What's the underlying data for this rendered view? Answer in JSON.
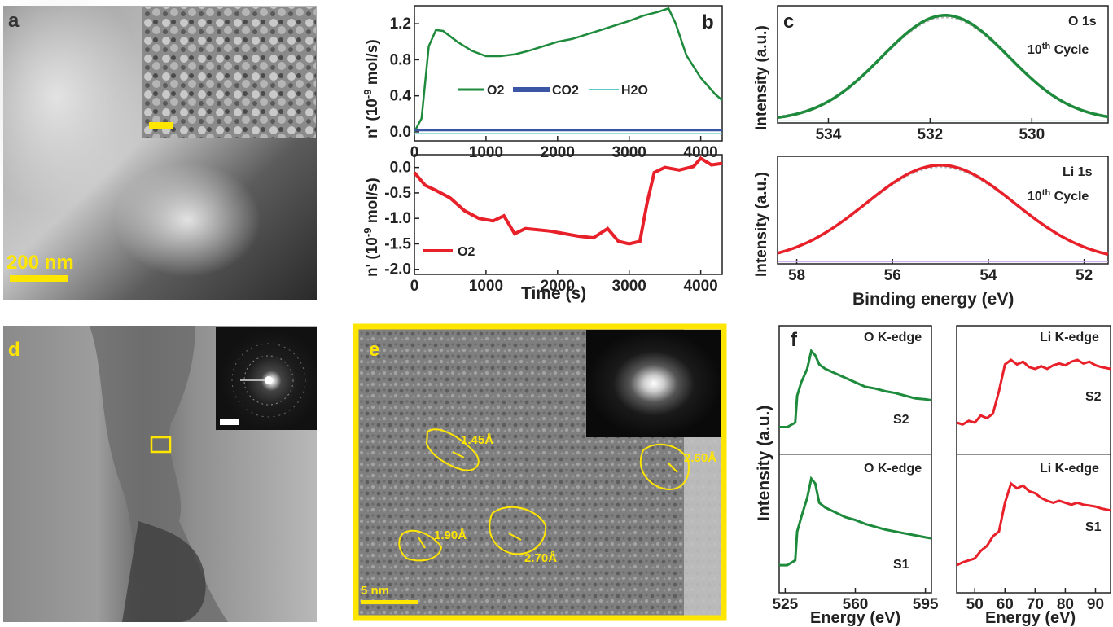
{
  "panels": {
    "a": {
      "letter": "a",
      "scale_bar": "200 nm"
    },
    "b": {
      "letter": "b"
    },
    "c": {
      "letter": "c",
      "top_label_1": "O 1s",
      "top_label_2": "10",
      "top_label_sup": "th",
      "top_label_3": " Cycle",
      "bottom_label_1": "Li 1s",
      "bottom_label_2": "10",
      "bottom_label_sup": "th",
      "bottom_label_3": " Cycle"
    },
    "d": {
      "letter": "d"
    },
    "e": {
      "letter": "e",
      "scale_bar": "5 nm",
      "d_spacings": [
        "1.45Å",
        "1.90Å",
        "2.70Å",
        "2.60Å"
      ]
    },
    "f": {
      "letter": "f",
      "o_edge": "O K-edge",
      "li_edge": "Li K-edge",
      "s2": "S2",
      "s1": "S1"
    }
  },
  "colors": {
    "green": "#1e8a3c",
    "red": "#e8202a",
    "blue": "#3a56a5",
    "cyan": "#5fc8c8",
    "yellow": "#ffe600"
  },
  "chart_data": [
    {
      "id": "b-top",
      "type": "line",
      "xlabel": "",
      "ylabel": "n' (10-9 mol/s)",
      "ylabel_parts": {
        "pre": "n' (10",
        "sup": "-9",
        "post": " mol/s)"
      },
      "xlim": [
        0,
        4300
      ],
      "ylim": [
        -0.1,
        1.4
      ],
      "xticks": [
        0,
        1000,
        2000,
        3000,
        4000
      ],
      "yticks": [
        0.0,
        0.4,
        0.8,
        1.2
      ],
      "ytick_labels": [
        "0.0",
        "0.4",
        "0.8",
        "1.2"
      ],
      "legend": [
        "O2",
        "CO2",
        "H2O"
      ],
      "series": [
        {
          "name": "O2",
          "color": "green",
          "x": [
            0,
            100,
            200,
            300,
            400,
            600,
            800,
            1000,
            1200,
            1400,
            1600,
            1800,
            2000,
            2200,
            2400,
            2600,
            2800,
            3000,
            3200,
            3400,
            3550,
            3650,
            3800,
            4000,
            4200,
            4300
          ],
          "y": [
            0.0,
            0.15,
            0.95,
            1.13,
            1.12,
            1.0,
            0.9,
            0.84,
            0.84,
            0.86,
            0.9,
            0.95,
            1.0,
            1.03,
            1.08,
            1.13,
            1.18,
            1.23,
            1.29,
            1.33,
            1.37,
            1.2,
            0.85,
            0.6,
            0.42,
            0.35
          ]
        },
        {
          "name": "CO2",
          "color": "blue",
          "x": [
            0,
            4300
          ],
          "y": [
            0.02,
            0.02
          ]
        },
        {
          "name": "H2O",
          "color": "cyan",
          "x": [
            0,
            4300
          ],
          "y": [
            -0.02,
            -0.02
          ]
        }
      ]
    },
    {
      "id": "b-bottom",
      "type": "line",
      "xlabel": "Time (s)",
      "ylabel": "n' (10-9 mol/s)",
      "ylabel_parts": {
        "pre": "n' (10",
        "sup": "-9",
        "post": " mol/s)"
      },
      "xlim": [
        0,
        4300
      ],
      "ylim": [
        -2.1,
        0.25
      ],
      "xticks": [
        0,
        1000,
        2000,
        3000,
        4000
      ],
      "yticks": [
        0.0,
        -0.5,
        -1.0,
        -1.5,
        -2.0
      ],
      "ytick_labels": [
        "0.0",
        "-0.5",
        "-1.0",
        "-1.5",
        "-2.0"
      ],
      "legend": [
        "O2"
      ],
      "series": [
        {
          "name": "O2",
          "color": "red",
          "x": [
            0,
            150,
            300,
            500,
            700,
            900,
            1100,
            1250,
            1400,
            1550,
            1700,
            1900,
            2100,
            2300,
            2500,
            2700,
            2850,
            3000,
            3150,
            3250,
            3350,
            3500,
            3700,
            3900,
            4000,
            4150,
            4300
          ],
          "y": [
            -0.1,
            -0.35,
            -0.45,
            -0.6,
            -0.85,
            -1.0,
            -1.05,
            -0.95,
            -1.3,
            -1.2,
            -1.22,
            -1.25,
            -1.3,
            -1.35,
            -1.38,
            -1.2,
            -1.45,
            -1.5,
            -1.45,
            -0.7,
            -0.1,
            0.0,
            -0.05,
            0.02,
            0.18,
            0.05,
            0.08
          ]
        }
      ]
    },
    {
      "id": "c-top",
      "type": "line",
      "xlabel": "",
      "ylabel": "Intensity (a.u.)",
      "xlim": [
        535,
        528.5
      ],
      "ylim": [
        0,
        1.0
      ],
      "xticks": [
        534,
        532,
        530
      ],
      "xtick_labels": [
        "534",
        "532",
        "530"
      ],
      "series": [
        {
          "name": "O 1s",
          "color": "green",
          "peak": 531.7,
          "width": 1.25
        }
      ]
    },
    {
      "id": "c-bottom",
      "type": "line",
      "xlabel": "Binding energy (eV)",
      "ylabel": "Intensity (a.u.)",
      "xlim": [
        58.4,
        51.5
      ],
      "ylim": [
        0,
        1.0
      ],
      "xticks": [
        58,
        56,
        54,
        52
      ],
      "xtick_labels": [
        "58",
        "56",
        "54",
        "52"
      ],
      "series": [
        {
          "name": "Li 1s",
          "color": "red",
          "peak": 55.0,
          "width": 1.55
        }
      ]
    },
    {
      "id": "f-O",
      "type": "line",
      "xlabel": "Energy (eV)",
      "ylabel": "Intensity (a.u.)",
      "xlim": [
        522,
        598
      ],
      "xticks": [
        525,
        560,
        595
      ],
      "xtick_labels": [
        "525",
        "560",
        "595"
      ],
      "series": [
        {
          "name": "S2",
          "color": "green",
          "x": [
            522,
            526,
            530,
            531,
            533,
            536,
            538,
            540,
            542,
            545,
            550,
            555,
            560,
            565,
            570,
            575,
            580,
            585,
            590,
            595,
            598
          ],
          "y": [
            0.05,
            0.05,
            0.1,
            0.4,
            0.55,
            0.7,
            0.9,
            0.85,
            0.75,
            0.7,
            0.65,
            0.6,
            0.55,
            0.5,
            0.48,
            0.45,
            0.43,
            0.4,
            0.37,
            0.36,
            0.35
          ]
        },
        {
          "name": "S1",
          "color": "green",
          "x": [
            522,
            526,
            530,
            531,
            533,
            536,
            538,
            540,
            542,
            545,
            550,
            555,
            560,
            565,
            570,
            575,
            580,
            585,
            590,
            595,
            598
          ],
          "y": [
            0.05,
            0.05,
            0.1,
            0.4,
            0.55,
            0.75,
            0.95,
            0.9,
            0.7,
            0.65,
            0.6,
            0.55,
            0.52,
            0.48,
            0.45,
            0.42,
            0.4,
            0.38,
            0.36,
            0.34,
            0.33
          ]
        }
      ]
    },
    {
      "id": "f-Li",
      "type": "line",
      "xlabel": "Energy (eV)",
      "ylabel": "",
      "xlim": [
        44,
        95
      ],
      "xticks": [
        50,
        60,
        70,
        80,
        90
      ],
      "xtick_labels": [
        "50",
        "60",
        "70",
        "80",
        "90"
      ],
      "series": [
        {
          "name": "S2",
          "color": "red",
          "x": [
            44,
            46,
            48,
            50,
            52,
            54,
            56,
            58,
            60,
            62,
            64,
            66,
            68,
            70,
            72,
            74,
            76,
            78,
            80,
            82,
            84,
            86,
            88,
            90,
            92,
            95
          ],
          "y": [
            0.1,
            0.08,
            0.12,
            0.1,
            0.18,
            0.15,
            0.2,
            0.45,
            0.75,
            0.8,
            0.75,
            0.78,
            0.72,
            0.7,
            0.73,
            0.7,
            0.74,
            0.76,
            0.74,
            0.78,
            0.8,
            0.76,
            0.78,
            0.74,
            0.72,
            0.7
          ]
        },
        {
          "name": "S1",
          "color": "red",
          "x": [
            44,
            46,
            48,
            50,
            52,
            54,
            56,
            58,
            60,
            62,
            64,
            66,
            68,
            70,
            72,
            74,
            76,
            78,
            80,
            82,
            84,
            86,
            88,
            90,
            92,
            95
          ],
          "y": [
            0.05,
            0.08,
            0.1,
            0.12,
            0.2,
            0.25,
            0.35,
            0.4,
            0.7,
            0.9,
            0.85,
            0.88,
            0.82,
            0.8,
            0.75,
            0.72,
            0.7,
            0.72,
            0.7,
            0.68,
            0.7,
            0.68,
            0.67,
            0.66,
            0.64,
            0.62
          ]
        }
      ]
    }
  ]
}
